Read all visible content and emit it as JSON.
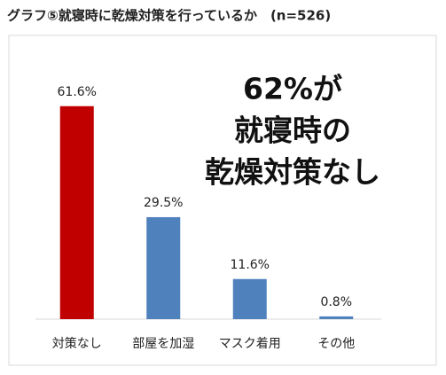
{
  "chart_data": {
    "type": "bar",
    "title": "グラフ⑤就寝時に乾燥対策を行っているか　(n=526)",
    "annotation": [
      "62%が",
      "就寝時の",
      "乾燥対策なし"
    ],
    "categories": [
      "対策なし",
      "部屋を加湿",
      "マスク着用",
      "その他"
    ],
    "values": [
      61.6,
      29.5,
      11.6,
      0.8
    ],
    "value_labels": [
      "61.6%",
      "29.5%",
      "11.6%",
      "0.8%"
    ],
    "colors": [
      "#c00000",
      "#4f81bd",
      "#4f81bd",
      "#4f81bd"
    ],
    "ylim": [
      0,
      70
    ]
  }
}
